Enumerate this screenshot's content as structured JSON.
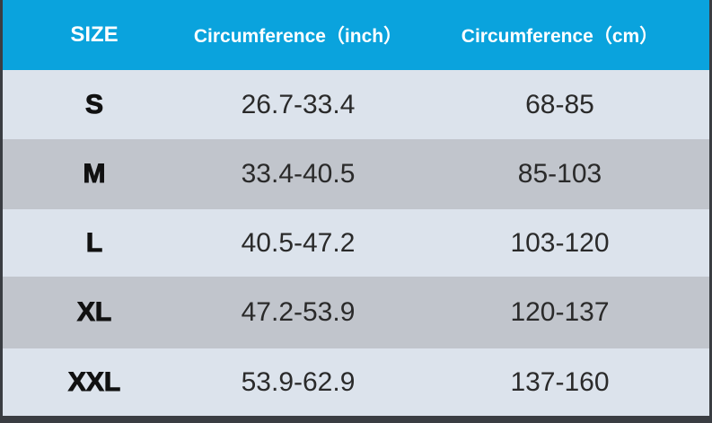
{
  "table": {
    "header": [
      "SIZE",
      "Circumference（inch）",
      "Circumference（cm）"
    ],
    "rows": [
      [
        "S",
        "26.7-33.4",
        "68-85"
      ],
      [
        "M",
        "33.4-40.5",
        "85-103"
      ],
      [
        "L",
        "40.5-47.2",
        "103-120"
      ],
      [
        "XL",
        "47.2-53.9",
        "120-137"
      ],
      [
        "XXL",
        "53.9-62.9",
        "137-160"
      ]
    ]
  }
}
